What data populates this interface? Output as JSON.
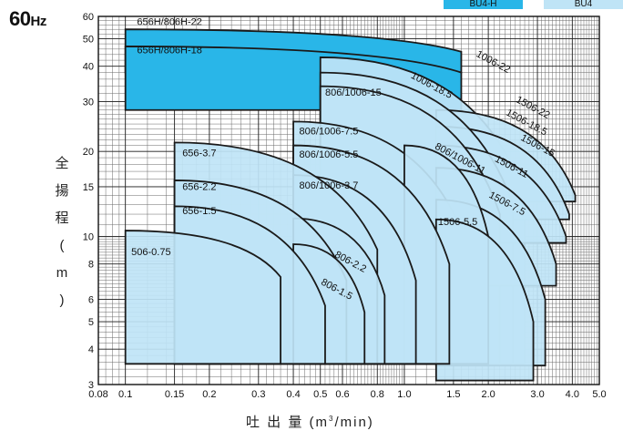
{
  "chart_data": {
    "type": "area",
    "frequency_label": "60",
    "frequency_unit": "Hz",
    "xlabel_main": "吐 出 量 (m",
    "xlabel_sup": "3",
    "xlabel_tail": "/min)",
    "ylabel": "全揚程(m)",
    "x_scale": "log",
    "y_scale": "log",
    "xlim": [
      0.08,
      5.0
    ],
    "ylim": [
      3,
      60
    ],
    "grid": true,
    "x_ticks": [
      {
        "value": 0.08,
        "label": "0.08"
      },
      {
        "value": 0.1,
        "label": "0.1"
      },
      {
        "value": 0.15,
        "label": "0.15"
      },
      {
        "value": 0.2,
        "label": "0.2"
      },
      {
        "value": 0.3,
        "label": "0.3"
      },
      {
        "value": 0.4,
        "label": "0.4"
      },
      {
        "value": 0.5,
        "label": "0.5"
      },
      {
        "value": 0.6,
        "label": "0.6"
      },
      {
        "value": 0.8,
        "label": "0.8"
      },
      {
        "value": 1.0,
        "label": "1.0"
      },
      {
        "value": 1.5,
        "label": "1.5"
      },
      {
        "value": 2.0,
        "label": "2.0"
      },
      {
        "value": 3.0,
        "label": "3.0"
      },
      {
        "value": 4.0,
        "label": "4.0"
      },
      {
        "value": 5.0,
        "label": "5.0"
      }
    ],
    "y_ticks": [
      {
        "value": 3,
        "label": "3"
      },
      {
        "value": 4,
        "label": "4"
      },
      {
        "value": 5,
        "label": "5"
      },
      {
        "value": 6,
        "label": "6"
      },
      {
        "value": 8,
        "label": "8"
      },
      {
        "value": 10,
        "label": "10"
      },
      {
        "value": 15,
        "label": "15"
      },
      {
        "value": 20,
        "label": "20"
      },
      {
        "value": 30,
        "label": "30"
      },
      {
        "value": 40,
        "label": "40"
      },
      {
        "value": 50,
        "label": "50"
      },
      {
        "value": 60,
        "label": "60"
      }
    ],
    "legend": [
      {
        "name": "BU4-H",
        "color": "#29b6e8"
      },
      {
        "name": "BU4",
        "color": "#bfe4f6"
      }
    ],
    "series": [
      {
        "name": "506-0.75",
        "group": "BU4",
        "q_min": 0.1,
        "q_max": 0.36,
        "h_max": 10.5,
        "h_min": 3.55,
        "h_knee": 7.2,
        "label_q": 0.105,
        "label_h": 8.6
      },
      {
        "name": "656-1.5",
        "group": "BU4",
        "q_min": 0.15,
        "q_max": 0.52,
        "h_max": 12.8,
        "h_min": 3.55,
        "h_knee": 5.7,
        "label_q": 0.16,
        "label_h": 12.0
      },
      {
        "name": "656-2.2",
        "group": "BU4",
        "q_min": 0.15,
        "q_max": 0.62,
        "h_max": 15.8,
        "h_min": 3.55,
        "h_knee": 7.0,
        "label_q": 0.16,
        "label_h": 14.6
      },
      {
        "name": "656-3.7",
        "group": "BU4",
        "q_min": 0.15,
        "q_max": 0.8,
        "h_max": 21.5,
        "h_min": 3.55,
        "h_knee": 9.0,
        "label_q": 0.16,
        "label_h": 19.2
      },
      {
        "name": "806-1.5",
        "group": "BU4",
        "q_min": 0.4,
        "q_max": 0.72,
        "h_max": 9.4,
        "h_min": 3.55,
        "h_knee": 5.4,
        "label_q": 0.5,
        "label_h": 6.8
      },
      {
        "name": "806-2.2",
        "group": "BU4",
        "q_min": 0.4,
        "q_max": 0.85,
        "h_max": 11.6,
        "h_min": 3.55,
        "h_knee": 6.2,
        "label_q": 0.56,
        "label_h": 8.5
      },
      {
        "name": "806/1006-3.7",
        "group": "BU4",
        "q_min": 0.4,
        "q_max": 1.1,
        "h_max": 16.5,
        "h_min": 3.55,
        "h_knee": 7.0,
        "label_q": 0.42,
        "label_h": 14.8
      },
      {
        "name": "806/1006-5.5",
        "group": "BU4",
        "q_min": 0.4,
        "q_max": 1.45,
        "h_max": 21.0,
        "h_min": 3.55,
        "h_knee": 8.0,
        "label_q": 0.42,
        "label_h": 19.0
      },
      {
        "name": "806/1006-7.5",
        "group": "BU4",
        "q_min": 0.4,
        "q_max": 1.7,
        "h_max": 25.5,
        "h_min": 3.55,
        "h_knee": 9.0,
        "label_q": 0.42,
        "label_h": 23.0
      },
      {
        "name": "806/1006-11",
        "group": "BU4",
        "q_min": 1.0,
        "q_max": 2.0,
        "h_max": 21.0,
        "h_min": 3.55,
        "h_knee": 10.0,
        "label_q": 1.28,
        "label_h": 20.5
      },
      {
        "name": "806/1006-15",
        "group": "BU4",
        "q_min": 0.5,
        "q_max": 2.2,
        "h_max": 34.0,
        "h_min": 3.55,
        "h_knee": 12.0,
        "label_q": 0.52,
        "label_h": 31.5
      },
      {
        "name": "1006-18.5",
        "group": "BU4",
        "q_min": 0.5,
        "q_max": 2.45,
        "h_max": 38.0,
        "h_min": 3.55,
        "h_knee": 13.0,
        "label_q": 1.05,
        "label_h": 36.5
      },
      {
        "name": "1006-22",
        "group": "BU4",
        "q_min": 0.5,
        "q_max": 2.7,
        "h_max": 43.0,
        "h_min": 3.55,
        "h_knee": 14.0,
        "label_q": 1.8,
        "label_h": 43.5
      },
      {
        "name": "1506-5.5",
        "group": "BU4",
        "q_min": 1.3,
        "q_max": 2.9,
        "h_max": 11.5,
        "h_min": 3.1,
        "h_knee": 5.0,
        "label_q": 1.32,
        "label_h": 11.0
      },
      {
        "name": "1506-7.5",
        "group": "BU4",
        "q_min": 1.3,
        "q_max": 3.2,
        "h_max": 13.5,
        "h_min": 3.5,
        "h_knee": 6.0,
        "label_q": 2.0,
        "label_h": 13.8
      },
      {
        "name": "1506-11",
        "group": "BU4",
        "q_min": 1.3,
        "q_max": 3.5,
        "h_max": 17.5,
        "h_min": 6.7,
        "h_knee": 8.0,
        "label_q": 2.1,
        "label_h": 18.5
      },
      {
        "name": "1506-15",
        "group": "BU4",
        "q_min": 1.3,
        "q_max": 3.8,
        "h_max": 21.0,
        "h_min": 9.5,
        "h_knee": 10.0,
        "label_q": 2.6,
        "label_h": 22.0
      },
      {
        "name": "1506-18.5",
        "group": "BU4",
        "q_min": 1.3,
        "q_max": 3.9,
        "h_max": 24.5,
        "h_min": 11.5,
        "h_knee": 12.0,
        "label_q": 2.3,
        "label_h": 27.0
      },
      {
        "name": "1506-22",
        "group": "BU4",
        "q_min": 1.3,
        "q_max": 4.1,
        "h_max": 28.0,
        "h_min": 13.3,
        "h_knee": 14.0,
        "label_q": 2.5,
        "label_h": 30.0
      },
      {
        "name": "656H/806H-18",
        "group": "BU4-H",
        "q_min": 0.1,
        "q_max": 1.6,
        "h_max": 47.0,
        "h_min": 28.0,
        "h_knee": 38.0,
        "label_q": 0.11,
        "label_h": 44.5
      },
      {
        "name": "656H/806H-22",
        "group": "BU4-H",
        "q_min": 0.1,
        "q_max": 1.6,
        "h_max": 54.0,
        "h_min": 38.0,
        "h_knee": 45.0,
        "label_q": 0.11,
        "label_h": 56.0
      }
    ]
  }
}
